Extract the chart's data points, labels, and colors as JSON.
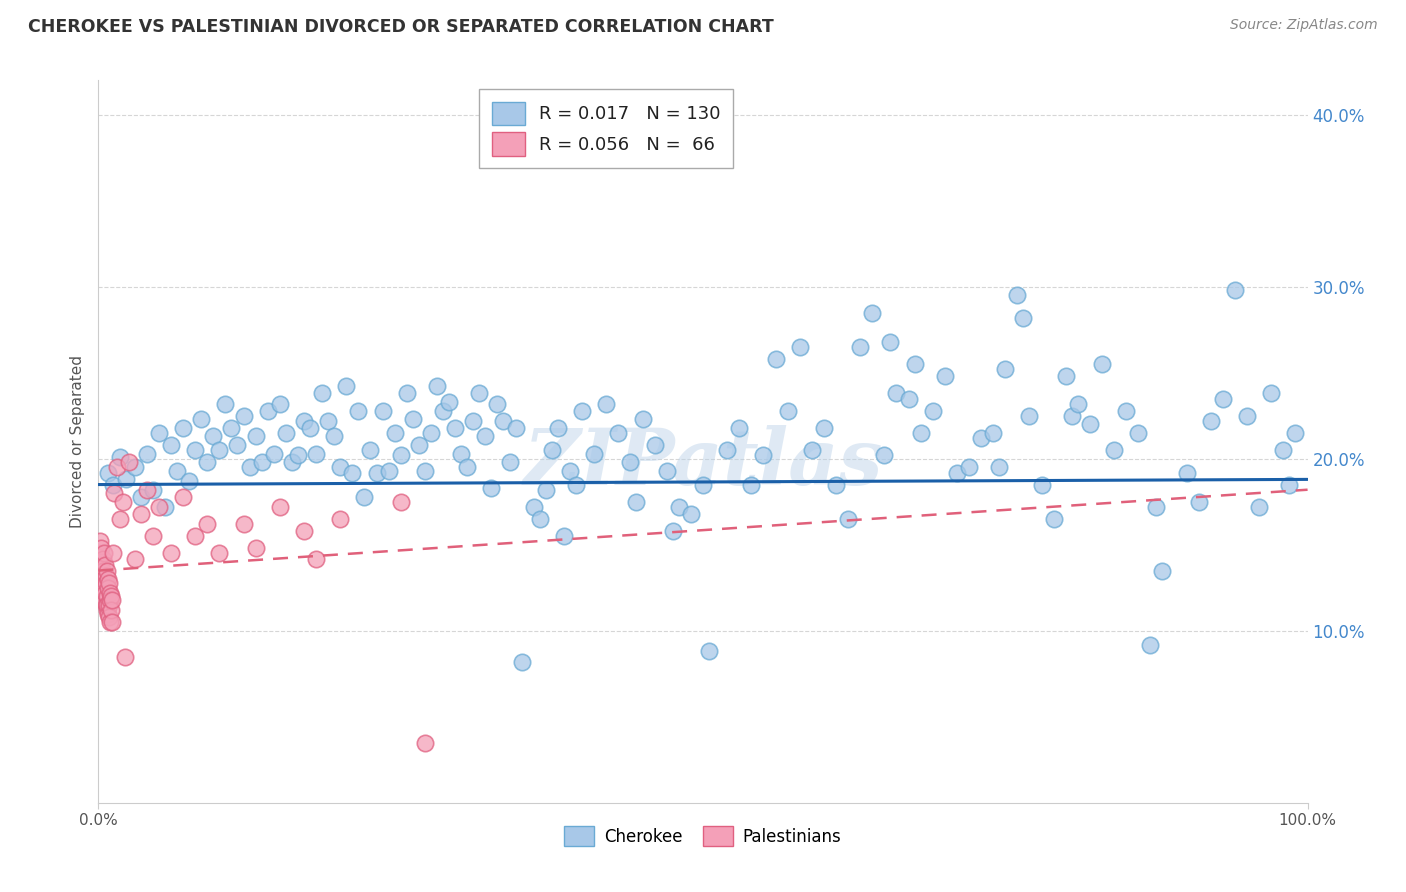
{
  "title": "CHEROKEE VS PALESTINIAN DIVORCED OR SEPARATED CORRELATION CHART",
  "source": "Source: ZipAtlas.com",
  "ylabel": "Divorced or Separated",
  "legend_cherokee_r": "0.017",
  "legend_cherokee_n": "130",
  "legend_palestinian_r": "0.056",
  "legend_palestinian_n": "66",
  "cherokee_color": "#a8c8e8",
  "cherokee_edge_color": "#6aaad4",
  "palestinian_color": "#f4a0b8",
  "palestinian_edge_color": "#e06080",
  "cherokee_line_color": "#1a5fa8",
  "palestinian_line_color": "#e0607a",
  "background_color": "#ffffff",
  "grid_color": "#cccccc",
  "watermark": "ZIPatlas",
  "ytick_color": "#4488cc",
  "title_color": "#333333",
  "source_color": "#888888",
  "cherokee_line_y0": 18.5,
  "cherokee_line_y1": 18.8,
  "palestinian_line_y0": 13.5,
  "palestinian_line_y1": 18.2,
  "cherokee_scatter": [
    [
      0.8,
      19.2
    ],
    [
      1.2,
      18.5
    ],
    [
      1.8,
      20.1
    ],
    [
      2.3,
      18.8
    ],
    [
      3.0,
      19.5
    ],
    [
      3.5,
      17.8
    ],
    [
      4.0,
      20.3
    ],
    [
      4.5,
      18.2
    ],
    [
      5.0,
      21.5
    ],
    [
      5.5,
      17.2
    ],
    [
      6.0,
      20.8
    ],
    [
      6.5,
      19.3
    ],
    [
      7.0,
      21.8
    ],
    [
      7.5,
      18.7
    ],
    [
      8.0,
      20.5
    ],
    [
      8.5,
      22.3
    ],
    [
      9.0,
      19.8
    ],
    [
      9.5,
      21.3
    ],
    [
      10.0,
      20.5
    ],
    [
      10.5,
      23.2
    ],
    [
      11.0,
      21.8
    ],
    [
      11.5,
      20.8
    ],
    [
      12.0,
      22.5
    ],
    [
      12.5,
      19.5
    ],
    [
      13.0,
      21.3
    ],
    [
      13.5,
      19.8
    ],
    [
      14.0,
      22.8
    ],
    [
      14.5,
      20.3
    ],
    [
      15.0,
      23.2
    ],
    [
      15.5,
      21.5
    ],
    [
      16.0,
      19.8
    ],
    [
      16.5,
      20.2
    ],
    [
      17.0,
      22.2
    ],
    [
      17.5,
      21.8
    ],
    [
      18.0,
      20.3
    ],
    [
      18.5,
      23.8
    ],
    [
      19.0,
      22.2
    ],
    [
      19.5,
      21.3
    ],
    [
      20.0,
      19.5
    ],
    [
      20.5,
      24.2
    ],
    [
      21.0,
      19.2
    ],
    [
      21.5,
      22.8
    ],
    [
      22.0,
      17.8
    ],
    [
      22.5,
      20.5
    ],
    [
      23.0,
      19.2
    ],
    [
      23.5,
      22.8
    ],
    [
      24.0,
      19.3
    ],
    [
      24.5,
      21.5
    ],
    [
      25.0,
      20.2
    ],
    [
      25.5,
      23.8
    ],
    [
      26.0,
      22.3
    ],
    [
      26.5,
      20.8
    ],
    [
      27.0,
      19.3
    ],
    [
      27.5,
      21.5
    ],
    [
      28.0,
      24.2
    ],
    [
      28.5,
      22.8
    ],
    [
      29.0,
      23.3
    ],
    [
      29.5,
      21.8
    ],
    [
      30.0,
      20.3
    ],
    [
      30.5,
      19.5
    ],
    [
      31.0,
      22.2
    ],
    [
      31.5,
      23.8
    ],
    [
      32.0,
      21.3
    ],
    [
      32.5,
      18.3
    ],
    [
      33.0,
      23.2
    ],
    [
      33.5,
      22.2
    ],
    [
      34.0,
      19.8
    ],
    [
      34.5,
      21.8
    ],
    [
      35.0,
      8.2
    ],
    [
      36.0,
      17.2
    ],
    [
      36.5,
      16.5
    ],
    [
      37.0,
      18.2
    ],
    [
      37.5,
      20.5
    ],
    [
      38.0,
      21.8
    ],
    [
      38.5,
      15.5
    ],
    [
      39.0,
      19.3
    ],
    [
      39.5,
      18.5
    ],
    [
      40.0,
      22.8
    ],
    [
      41.0,
      20.3
    ],
    [
      42.0,
      23.2
    ],
    [
      43.0,
      21.5
    ],
    [
      44.0,
      19.8
    ],
    [
      44.5,
      17.5
    ],
    [
      45.0,
      22.3
    ],
    [
      46.0,
      20.8
    ],
    [
      47.0,
      19.3
    ],
    [
      47.5,
      15.8
    ],
    [
      48.0,
      17.2
    ],
    [
      49.0,
      16.8
    ],
    [
      50.0,
      18.5
    ],
    [
      50.5,
      8.8
    ],
    [
      52.0,
      20.5
    ],
    [
      53.0,
      21.8
    ],
    [
      54.0,
      18.5
    ],
    [
      55.0,
      20.2
    ],
    [
      56.0,
      25.8
    ],
    [
      57.0,
      22.8
    ],
    [
      58.0,
      26.5
    ],
    [
      59.0,
      20.5
    ],
    [
      60.0,
      21.8
    ],
    [
      61.0,
      18.5
    ],
    [
      62.0,
      16.5
    ],
    [
      63.0,
      26.5
    ],
    [
      64.0,
      28.5
    ],
    [
      65.0,
      20.2
    ],
    [
      65.5,
      26.8
    ],
    [
      66.0,
      23.8
    ],
    [
      67.0,
      23.5
    ],
    [
      67.5,
      25.5
    ],
    [
      68.0,
      21.5
    ],
    [
      69.0,
      22.8
    ],
    [
      70.0,
      24.8
    ],
    [
      71.0,
      19.2
    ],
    [
      72.0,
      19.5
    ],
    [
      73.0,
      21.2
    ],
    [
      74.0,
      21.5
    ],
    [
      74.5,
      19.5
    ],
    [
      75.0,
      25.2
    ],
    [
      76.0,
      29.5
    ],
    [
      76.5,
      28.2
    ],
    [
      77.0,
      22.5
    ],
    [
      78.0,
      18.5
    ],
    [
      79.0,
      16.5
    ],
    [
      80.0,
      24.8
    ],
    [
      80.5,
      22.5
    ],
    [
      81.0,
      23.2
    ],
    [
      82.0,
      22.0
    ],
    [
      83.0,
      25.5
    ],
    [
      84.0,
      20.5
    ],
    [
      85.0,
      22.8
    ],
    [
      86.0,
      21.5
    ],
    [
      87.0,
      9.2
    ],
    [
      87.5,
      17.2
    ],
    [
      88.0,
      13.5
    ],
    [
      90.0,
      19.2
    ],
    [
      91.0,
      17.5
    ],
    [
      92.0,
      22.2
    ],
    [
      93.0,
      23.5
    ],
    [
      94.0,
      29.8
    ],
    [
      95.0,
      22.5
    ],
    [
      96.0,
      17.2
    ],
    [
      97.0,
      23.8
    ],
    [
      98.0,
      20.5
    ],
    [
      98.5,
      18.5
    ],
    [
      99.0,
      21.5
    ]
  ],
  "palestinian_scatter": [
    [
      0.05,
      13.2
    ],
    [
      0.08,
      14.5
    ],
    [
      0.1,
      13.8
    ],
    [
      0.12,
      15.2
    ],
    [
      0.15,
      13.5
    ],
    [
      0.18,
      14.8
    ],
    [
      0.2,
      13.2
    ],
    [
      0.22,
      12.5
    ],
    [
      0.25,
      14.0
    ],
    [
      0.28,
      13.5
    ],
    [
      0.3,
      12.8
    ],
    [
      0.35,
      14.2
    ],
    [
      0.38,
      13.5
    ],
    [
      0.4,
      12.2
    ],
    [
      0.42,
      11.8
    ],
    [
      0.45,
      13.0
    ],
    [
      0.48,
      12.5
    ],
    [
      0.5,
      14.5
    ],
    [
      0.55,
      13.8
    ],
    [
      0.58,
      12.2
    ],
    [
      0.6,
      11.5
    ],
    [
      0.62,
      13.2
    ],
    [
      0.65,
      12.8
    ],
    [
      0.68,
      11.2
    ],
    [
      0.7,
      13.5
    ],
    [
      0.72,
      12.0
    ],
    [
      0.75,
      11.5
    ],
    [
      0.78,
      13.0
    ],
    [
      0.8,
      12.5
    ],
    [
      0.82,
      11.0
    ],
    [
      0.85,
      12.8
    ],
    [
      0.88,
      11.5
    ],
    [
      0.9,
      10.8
    ],
    [
      0.92,
      12.2
    ],
    [
      0.95,
      11.8
    ],
    [
      0.98,
      10.5
    ],
    [
      1.0,
      12.0
    ],
    [
      1.05,
      11.2
    ],
    [
      1.1,
      10.5
    ],
    [
      1.15,
      11.8
    ],
    [
      1.2,
      14.5
    ],
    [
      1.3,
      18.0
    ],
    [
      1.5,
      19.5
    ],
    [
      1.8,
      16.5
    ],
    [
      2.0,
      17.5
    ],
    [
      2.5,
      19.8
    ],
    [
      3.0,
      14.2
    ],
    [
      3.5,
      16.8
    ],
    [
      4.0,
      18.2
    ],
    [
      4.5,
      15.5
    ],
    [
      5.0,
      17.2
    ],
    [
      6.0,
      14.5
    ],
    [
      7.0,
      17.8
    ],
    [
      8.0,
      15.5
    ],
    [
      9.0,
      16.2
    ],
    [
      10.0,
      14.5
    ],
    [
      12.0,
      16.2
    ],
    [
      13.0,
      14.8
    ],
    [
      15.0,
      17.2
    ],
    [
      17.0,
      15.8
    ],
    [
      18.0,
      14.2
    ],
    [
      20.0,
      16.5
    ],
    [
      25.0,
      17.5
    ],
    [
      27.0,
      3.5
    ],
    [
      2.2,
      8.5
    ]
  ],
  "xlim": [
    0,
    100
  ],
  "ylim": [
    0,
    42
  ],
  "ytick_positions": [
    10,
    20,
    30,
    40
  ],
  "ytick_labels": [
    "10.0%",
    "20.0%",
    "30.0%",
    "40.0%"
  ],
  "xtick_positions": [
    0,
    100
  ],
  "xtick_labels": [
    "0.0%",
    "100.0%"
  ]
}
